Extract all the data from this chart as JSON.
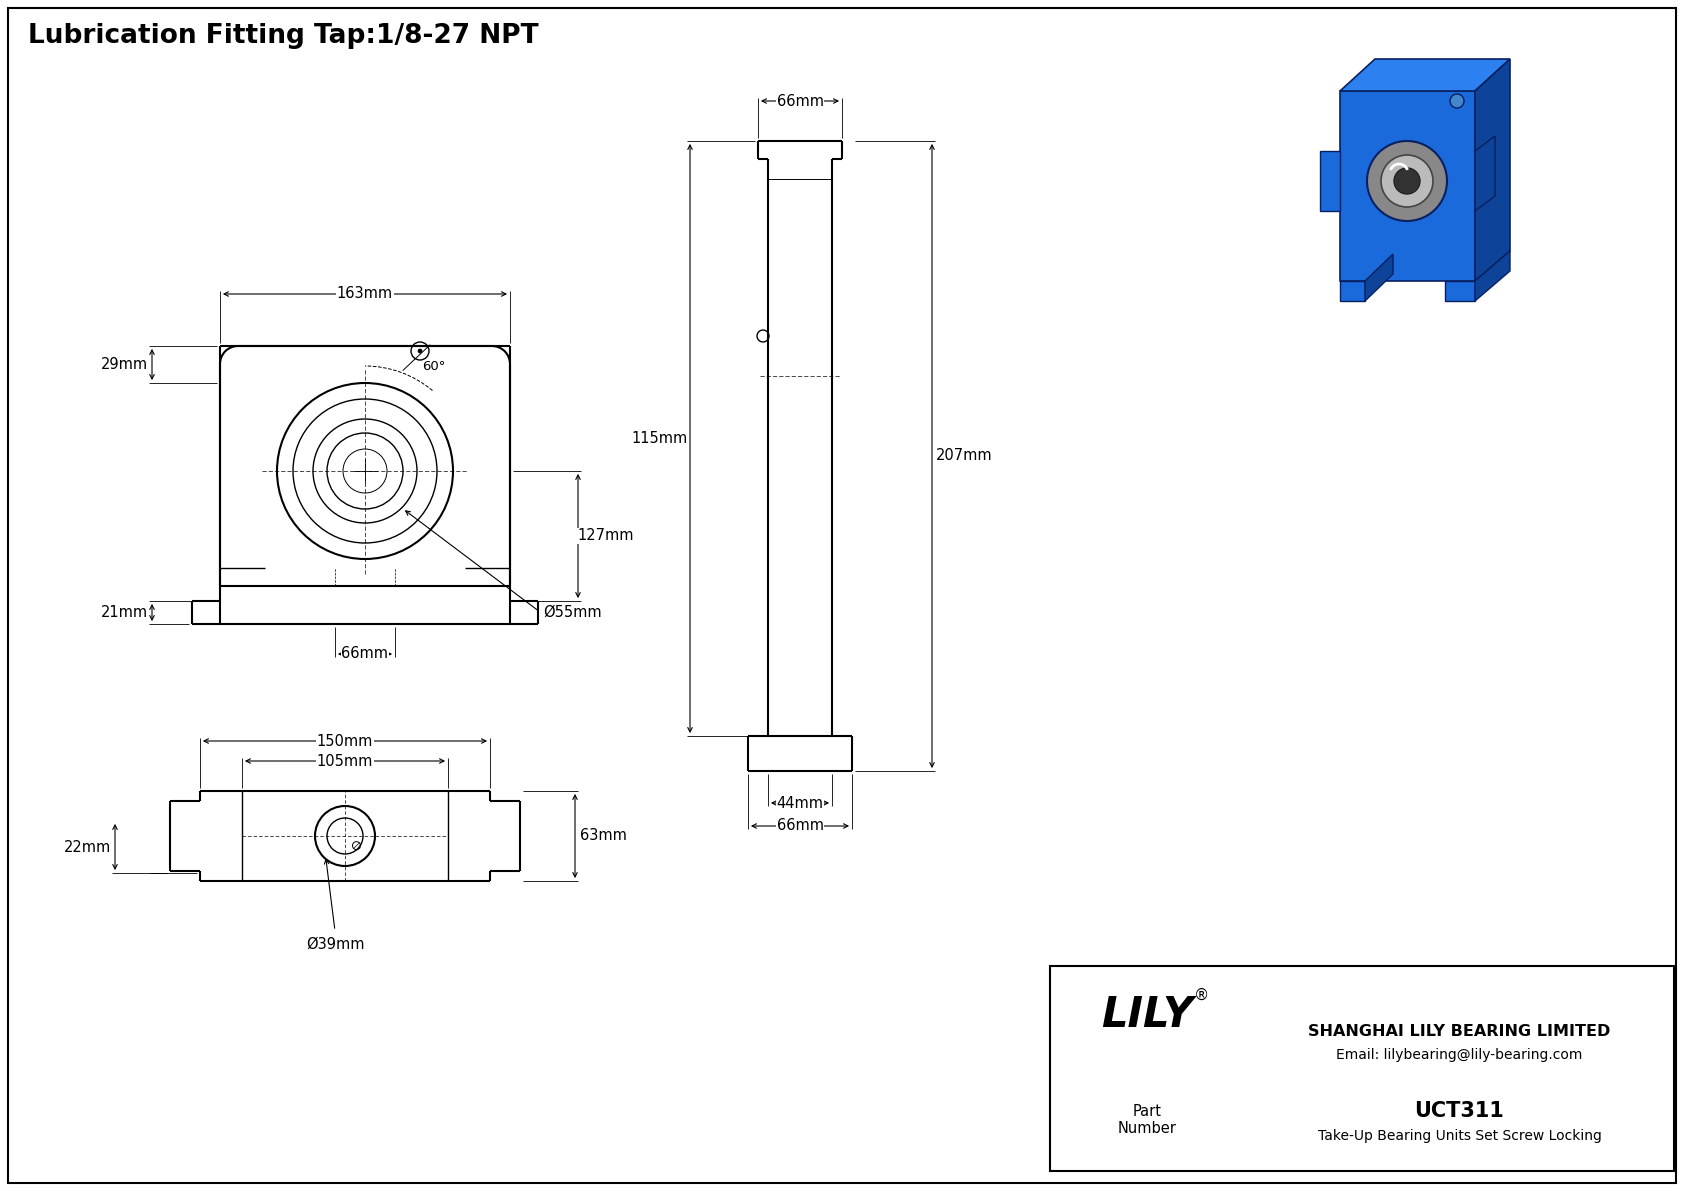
{
  "title": "Lubrication Fitting Tap:1/8-27 NPT",
  "drawing_bg": "#ffffff",
  "line_color": "#000000",
  "annotations": {
    "front_view": {
      "width_dim": "163mm",
      "right_height_dim": "127mm",
      "left_height_dim": "29mm",
      "foot_height_dim": "21mm",
      "foot_width_dim": "66mm",
      "bore_dim": "Ø55mm",
      "angle_dim": "60°"
    },
    "side_view": {
      "top_width": "66mm",
      "total_height": "207mm",
      "upper_height": "115mm",
      "bottom_width1": "44mm",
      "bottom_width2": "66mm"
    },
    "bottom_view": {
      "outer_width": "150mm",
      "inner_width": "105mm",
      "height_dim": "63mm",
      "foot_dim": "22mm",
      "bore_dim": "Ø39mm"
    }
  },
  "title_block": {
    "company": "SHANGHAI LILY BEARING LIMITED",
    "email": "Email: lilybearing@lily-bearing.com",
    "part_number": "UCT311",
    "description": "Take-Up Bearing Units Set Screw Locking"
  },
  "iso_colors": {
    "front": "#1a6adc",
    "top": "#2d80f0",
    "right": "#0d4499",
    "edge": "#082060",
    "bearing_outer": "#888888",
    "bearing_mid": "#bbbbbb",
    "bearing_inner": "#555555"
  }
}
